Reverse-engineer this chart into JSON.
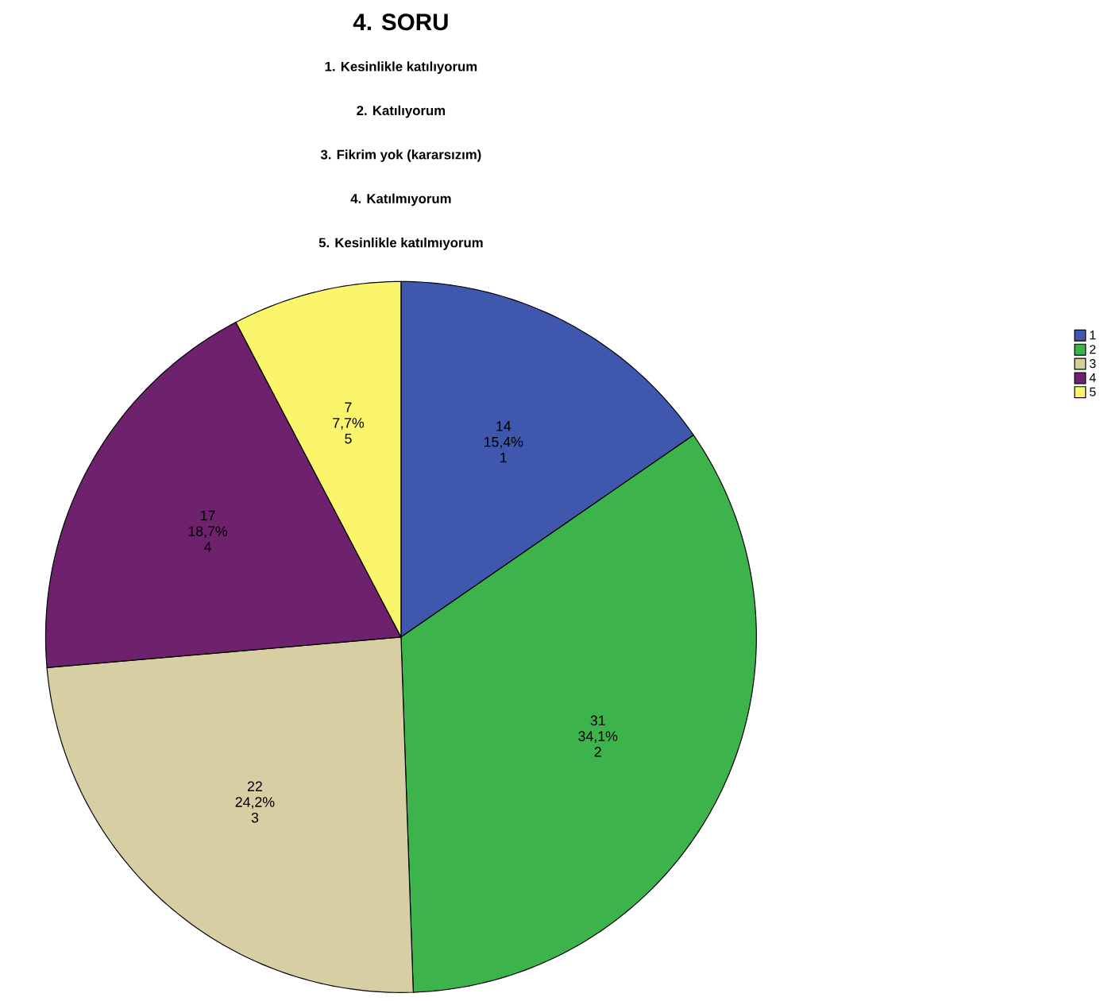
{
  "chart_data": {
    "type": "pie",
    "title": "4. SORU",
    "subtitle": [
      "1. Kesinlikle katılıyorum",
      "2. Katılıyorum",
      "3. Fikrim yok (kararsızım)",
      "4. Katılmıyorum",
      "5. Kesinlikle katılmıyorum"
    ],
    "categories": [
      "1",
      "2",
      "3",
      "4",
      "5"
    ],
    "values": [
      14,
      31,
      22,
      17,
      7
    ],
    "colors": [
      "#3f57ad",
      "#3cb44b",
      "#d7cfa3",
      "#6e226e",
      "#fbf56c"
    ],
    "data_labels": true,
    "annotations": [
      {
        "text": "15,4%",
        "x": "1"
      },
      {
        "text": "34,1%",
        "x": "2"
      },
      {
        "text": "24,2%",
        "x": "3"
      },
      {
        "text": "18,7%",
        "x": "4"
      },
      {
        "text": "7,7%",
        "x": "5"
      }
    ],
    "legend": "right"
  }
}
